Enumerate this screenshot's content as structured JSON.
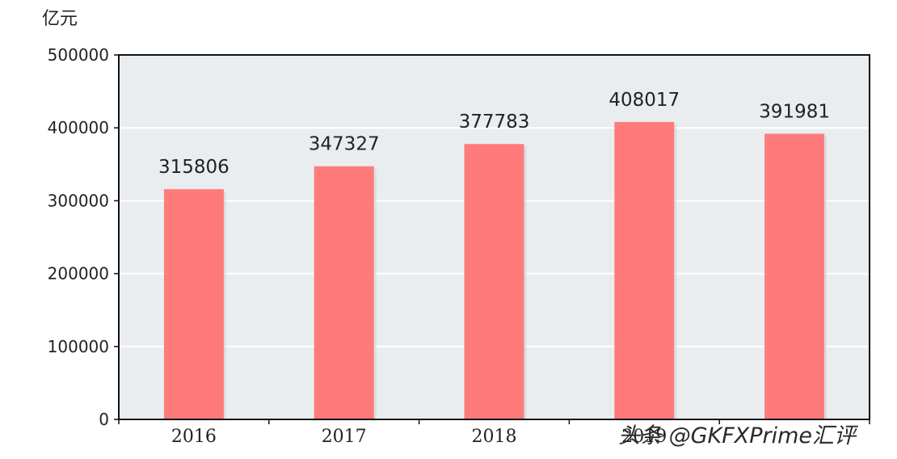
{
  "chart_data": {
    "type": "bar",
    "unit_label": "亿元",
    "categories": [
      "2016",
      "2017",
      "2018",
      "2019",
      "2020"
    ],
    "values": [
      315806,
      347327,
      377783,
      408017,
      391981
    ],
    "value_labels": [
      "315806",
      "347327",
      "377783",
      "408017",
      "391981"
    ],
    "ylim": [
      0,
      500000
    ],
    "yticks": [
      0,
      100000,
      200000,
      300000,
      400000,
      500000
    ],
    "ytick_labels": [
      "0",
      "100000",
      "200000",
      "300000",
      "400000",
      "500000"
    ],
    "grid": true,
    "colors": {
      "bar": "#ff7b7b",
      "plot_bg": "#e9edf0",
      "grid": "#ffffff"
    }
  },
  "watermark": "头条 @GKFXPrime汇评"
}
